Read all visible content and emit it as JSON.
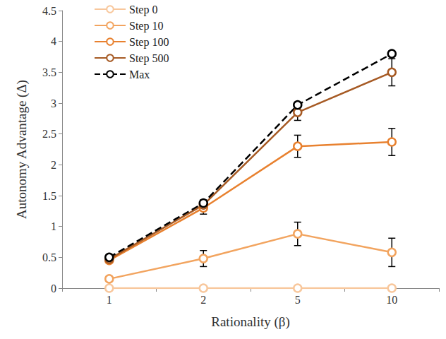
{
  "chart_data": {
    "type": "line",
    "x_label": "Rationality (β)",
    "y_label": "Autonomy Advantage (Δ)",
    "categories": [
      1,
      2,
      5,
      10
    ],
    "ylim": [
      0,
      4.5
    ],
    "yticks": [
      0,
      0.5,
      1,
      1.5,
      2,
      2.5,
      3,
      3.5,
      4,
      4.5
    ],
    "grid": false,
    "legend": "top-left",
    "series": [
      {
        "name": "Step 0",
        "color": "#f8c79c",
        "marker": "circle",
        "line_style": "solid",
        "values": [
          0,
          0,
          0,
          0
        ]
      },
      {
        "name": "Step 10",
        "color": "#f2a45f",
        "marker": "circle",
        "line_style": "solid",
        "values": [
          0.15,
          0.48,
          0.88,
          0.58
        ],
        "errors": [
          0.03,
          0.13,
          0.19,
          0.23
        ]
      },
      {
        "name": "Step 100",
        "color": "#e8812f",
        "marker": "circle",
        "line_style": "solid",
        "values": [
          0.45,
          1.3,
          2.3,
          2.37
        ],
        "errors": [
          0.03,
          0.1,
          0.18,
          0.22
        ]
      },
      {
        "name": "Step 500",
        "color": "#a65a24",
        "marker": "circle",
        "line_style": "solid",
        "values": [
          0.47,
          1.35,
          2.85,
          3.5
        ],
        "errors": [
          0.03,
          0.08,
          0.13,
          0.22
        ]
      },
      {
        "name": "Max",
        "color": "#000000",
        "marker": "circle",
        "line_style": "dashed",
        "values": [
          0.5,
          1.38,
          2.97,
          3.8
        ]
      }
    ]
  }
}
